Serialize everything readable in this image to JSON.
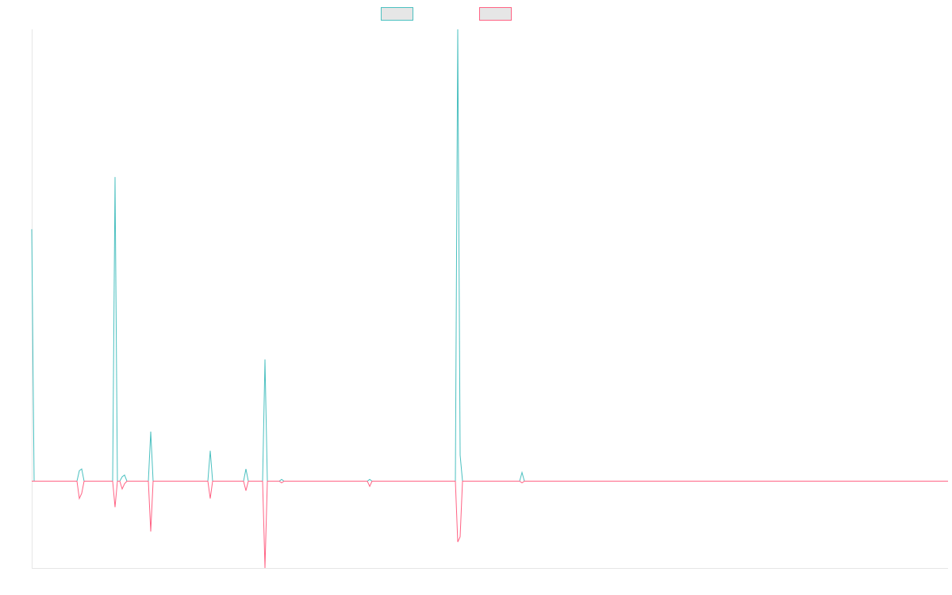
{
  "chart_data": {
    "type": "line",
    "title": "",
    "xlabel": "",
    "ylabel": "",
    "grid": false,
    "legend": {
      "position": "top-center",
      "labels": [
        "",
        ""
      ]
    },
    "x": [
      0,
      1,
      2,
      3,
      4,
      5,
      6,
      7,
      8,
      9,
      10,
      11,
      12,
      13,
      14,
      15,
      16,
      17,
      18,
      19,
      20,
      21,
      22,
      23,
      24,
      25,
      26,
      27,
      28,
      29,
      30,
      31,
      32,
      33,
      34,
      35,
      36,
      37,
      38,
      39,
      40,
      41,
      42,
      43,
      44,
      45,
      46,
      47,
      48,
      49,
      50,
      51,
      52,
      53,
      54,
      55,
      56,
      57,
      58,
      59,
      60,
      61,
      62,
      63,
      64,
      65,
      66,
      67,
      68,
      69,
      70,
      71,
      72,
      73,
      74,
      75,
      76,
      77,
      78,
      79,
      80,
      81,
      82,
      83,
      84,
      85,
      86,
      87,
      88,
      89,
      90,
      91,
      92,
      93,
      94,
      95,
      96,
      97,
      98,
      99,
      100,
      101,
      102,
      103,
      104,
      105,
      106,
      107,
      108,
      109,
      110,
      111,
      112,
      113,
      114,
      115,
      116,
      117,
      118,
      119,
      120,
      121,
      122,
      123,
      124,
      125,
      126,
      127,
      128,
      129,
      130,
      131,
      132,
      133,
      134,
      135,
      136,
      137,
      138,
      139,
      140,
      141,
      142,
      143,
      144,
      145,
      146,
      147,
      148,
      149,
      150,
      151,
      152,
      153,
      154,
      155,
      156,
      157,
      158,
      159,
      160,
      161,
      162,
      163,
      164,
      165,
      166,
      167,
      168,
      169,
      170,
      171,
      172,
      173,
      174,
      175,
      176,
      177,
      178,
      179,
      180,
      181,
      182,
      183,
      184,
      185,
      186,
      187,
      188,
      189,
      190,
      191,
      192,
      193,
      194,
      195,
      196,
      197,
      198,
      199,
      200,
      201,
      202,
      203,
      204,
      205,
      206,
      207,
      208,
      209,
      210,
      211,
      212,
      213,
      214,
      215,
      216,
      217,
      218,
      219,
      220,
      221,
      222,
      223,
      224,
      225,
      226,
      227,
      228,
      229,
      230,
      231,
      232,
      233,
      234,
      235,
      236,
      237,
      238,
      239,
      240,
      241,
      242,
      243,
      244,
      245,
      246,
      247,
      248,
      249,
      250,
      251,
      252,
      253,
      254,
      255,
      256,
      257,
      258,
      259,
      260,
      261,
      262,
      263,
      264,
      265,
      266,
      267,
      268,
      269,
      270,
      271,
      272,
      273,
      274,
      275,
      276,
      277,
      278,
      279,
      280,
      281,
      282,
      283,
      284,
      285,
      286,
      287,
      288,
      289,
      290,
      291,
      292,
      293,
      294,
      295,
      296,
      297,
      298,
      299,
      300,
      301,
      302,
      303,
      304,
      305,
      306,
      307,
      308,
      309,
      310,
      311,
      312,
      313,
      314,
      315,
      316,
      317,
      318,
      319,
      320,
      321,
      322,
      323,
      324,
      325,
      326,
      327,
      328,
      329,
      330,
      331,
      332,
      333,
      334,
      335,
      336,
      337,
      338,
      339,
      340,
      341,
      342,
      343,
      344,
      345,
      346,
      347,
      348,
      349,
      350,
      351,
      352,
      353,
      354,
      355,
      356,
      357,
      358,
      359,
      360,
      361,
      362,
      363,
      364,
      365,
      366,
      367,
      368,
      369,
      370,
      371,
      372,
      373,
      374,
      375,
      376,
      377,
      378,
      379,
      380,
      381,
      382,
      383,
      384,
      385
    ],
    "ylim": [
      -100,
      520
    ],
    "series": [
      {
        "color": "#4bc0c0",
        "points": [
          [
            0,
            290
          ],
          [
            1,
            0
          ],
          [
            19,
            0
          ],
          [
            20,
            12
          ],
          [
            21,
            14
          ],
          [
            22,
            0
          ],
          [
            34,
            0
          ],
          [
            35,
            350
          ],
          [
            36,
            0
          ],
          [
            37,
            0
          ],
          [
            38,
            5
          ],
          [
            39,
            7
          ],
          [
            40,
            0
          ],
          [
            49,
            0
          ],
          [
            50,
            57
          ],
          [
            51,
            0
          ],
          [
            74,
            0
          ],
          [
            75,
            35
          ],
          [
            76,
            0
          ],
          [
            89,
            0
          ],
          [
            90,
            14
          ],
          [
            91,
            0
          ],
          [
            97,
            0
          ],
          [
            98,
            140
          ],
          [
            99,
            0
          ],
          [
            104,
            0
          ],
          [
            105,
            2
          ],
          [
            106,
            0
          ],
          [
            141,
            0
          ],
          [
            142,
            2
          ],
          [
            143,
            0
          ],
          [
            178,
            0
          ],
          [
            179,
            520
          ],
          [
            180,
            30
          ],
          [
            181,
            0
          ],
          [
            205,
            0
          ],
          [
            206,
            10
          ],
          [
            207,
            0
          ],
          [
            385,
            0
          ]
        ]
      },
      {
        "color": "#ff6384",
        "points": [
          [
            0,
            0
          ],
          [
            19,
            0
          ],
          [
            20,
            -20
          ],
          [
            21,
            -14
          ],
          [
            22,
            0
          ],
          [
            34,
            0
          ],
          [
            35,
            -30
          ],
          [
            36,
            0
          ],
          [
            37,
            0
          ],
          [
            38,
            -9
          ],
          [
            39,
            -3
          ],
          [
            40,
            0
          ],
          [
            49,
            0
          ],
          [
            50,
            -58
          ],
          [
            51,
            0
          ],
          [
            74,
            0
          ],
          [
            75,
            -20
          ],
          [
            76,
            0
          ],
          [
            89,
            0
          ],
          [
            90,
            -11
          ],
          [
            91,
            0
          ],
          [
            97,
            0
          ],
          [
            98,
            -100
          ],
          [
            99,
            0
          ],
          [
            104,
            0
          ],
          [
            105,
            -2
          ],
          [
            106,
            0
          ],
          [
            141,
            0
          ],
          [
            142,
            -6
          ],
          [
            143,
            0
          ],
          [
            178,
            0
          ],
          [
            179,
            -70
          ],
          [
            180,
            -64
          ],
          [
            181,
            0
          ],
          [
            205,
            0
          ],
          [
            206,
            -2
          ],
          [
            207,
            0
          ],
          [
            385,
            0
          ]
        ]
      }
    ]
  }
}
